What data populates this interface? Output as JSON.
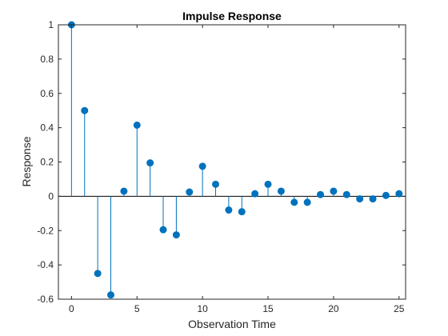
{
  "chart_data": {
    "type": "stem",
    "title": "Impulse Response",
    "xlabel": "Observation Time",
    "ylabel": "Response",
    "xlim": [
      -1,
      25.5
    ],
    "ylim": [
      -0.6,
      1
    ],
    "xticks": [
      0,
      5,
      10,
      15,
      20,
      25
    ],
    "xtick_labels": [
      "0",
      "5",
      "10",
      "15",
      "20",
      "25"
    ],
    "yticks": [
      -0.6,
      -0.4,
      -0.2,
      0,
      0.2,
      0.4,
      0.6,
      0.8,
      1
    ],
    "ytick_labels": [
      "-0.6",
      "-0.4",
      "-0.2",
      "0",
      "0.2",
      "0.4",
      "0.6",
      "0.8",
      "1"
    ],
    "grid": false,
    "baseline": 0,
    "series": [
      {
        "color": "#0072bd",
        "x": [
          0,
          1,
          2,
          3,
          4,
          5,
          6,
          7,
          8,
          9,
          10,
          11,
          12,
          13,
          14,
          15,
          16,
          17,
          18,
          19,
          20,
          21,
          22,
          23,
          24,
          25
        ],
        "values": [
          1.0,
          0.5,
          -0.45,
          -0.575,
          0.03,
          0.415,
          0.195,
          -0.195,
          -0.225,
          0.025,
          0.175,
          0.07,
          -0.08,
          -0.09,
          0.015,
          0.07,
          0.03,
          -0.035,
          -0.035,
          0.01,
          0.03,
          0.01,
          -0.015,
          -0.015,
          0.005,
          0.015
        ]
      }
    ]
  }
}
